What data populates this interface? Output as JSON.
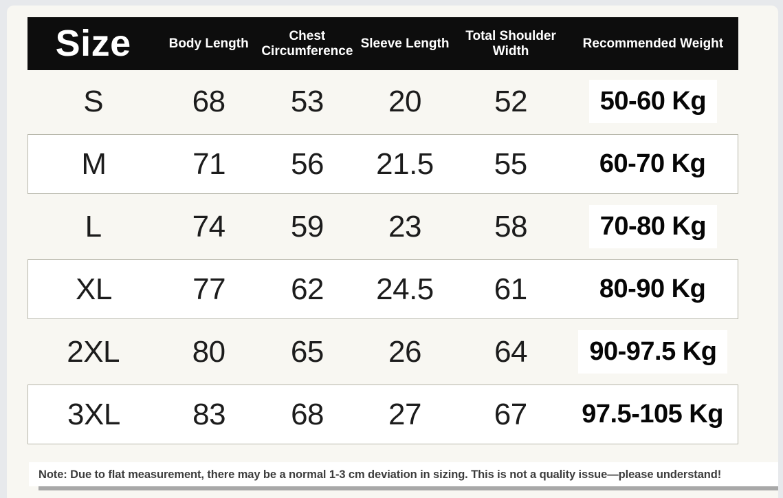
{
  "colors": {
    "page_background": "#e7e9ec",
    "card_background": "#f8f7f2",
    "header_background": "#0d0d0d",
    "header_text": "#ffffff",
    "row_border": "#b6b6aa",
    "divider_bar": "#a8a8a8"
  },
  "table": {
    "header": {
      "size": "Size",
      "columns": [
        "Body Length",
        "Chest Circumference",
        "Sleeve Length",
        "Total Shoulder Width",
        "Recommended Weight"
      ]
    },
    "rows": [
      {
        "size": "S",
        "body_length": "68",
        "chest_circumference": "53",
        "sleeve_length": "20",
        "shoulder_width": "52",
        "weight": "50-60 Kg"
      },
      {
        "size": "M",
        "body_length": "71",
        "chest_circumference": "56",
        "sleeve_length": "21.5",
        "shoulder_width": "55",
        "weight": "60-70 Kg"
      },
      {
        "size": "L",
        "body_length": "74",
        "chest_circumference": "59",
        "sleeve_length": "23",
        "shoulder_width": "58",
        "weight": "70-80 Kg"
      },
      {
        "size": "XL",
        "body_length": "77",
        "chest_circumference": "62",
        "sleeve_length": "24.5",
        "shoulder_width": "61",
        "weight": "80-90 Kg"
      },
      {
        "size": "2XL",
        "body_length": "80",
        "chest_circumference": "65",
        "sleeve_length": "26",
        "shoulder_width": "64",
        "weight": "90-97.5 Kg"
      },
      {
        "size": "3XL",
        "body_length": "83",
        "chest_circumference": "68",
        "sleeve_length": "27",
        "shoulder_width": "67",
        "weight": "97.5-105 Kg"
      }
    ]
  },
  "note": {
    "text": "Note: Due to flat measurement, there may be a normal 1-3 cm deviation in sizing. This is not a quality issue—please understand!"
  }
}
